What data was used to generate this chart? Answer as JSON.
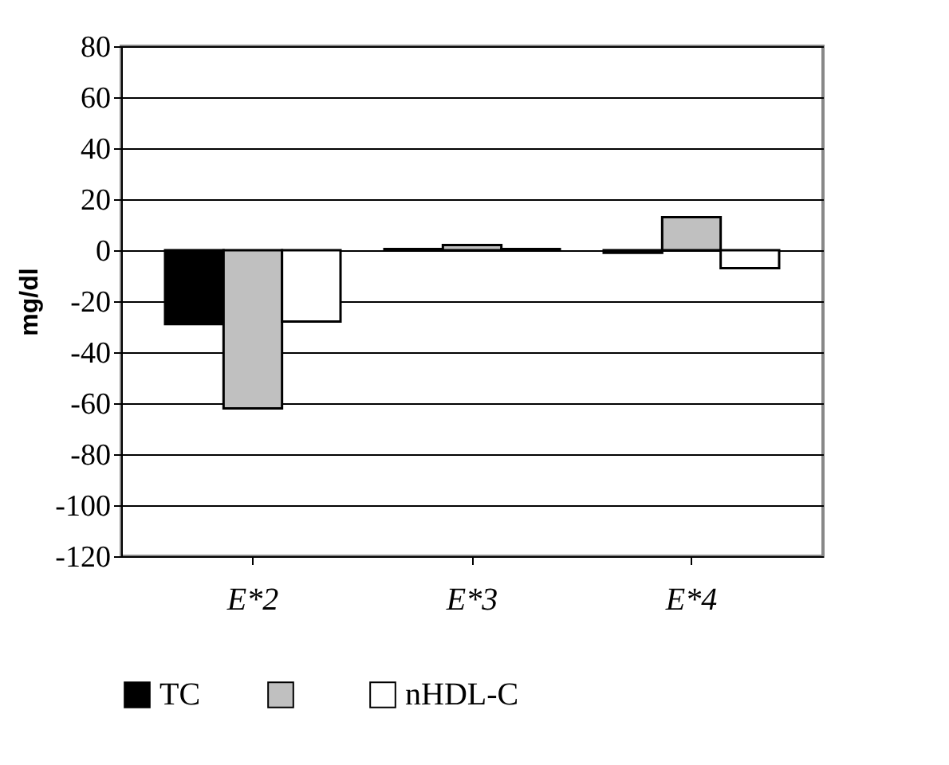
{
  "chart_data": {
    "type": "bar",
    "ylabel": "mg/dl",
    "categories": [
      "E*2",
      "E*3",
      "E*4"
    ],
    "series": [
      {
        "name": "TC",
        "color": "#000000",
        "values": [
          -29,
          0.5,
          -1
        ]
      },
      {
        "color": "#c0c0c0",
        "values": [
          -62,
          2,
          13
        ]
      },
      {
        "name": "nHDL-C",
        "color": "#ffffff",
        "values": [
          -28,
          0.5,
          -7
        ]
      }
    ],
    "ylim": [
      -120,
      80
    ],
    "yticks": [
      -120,
      -100,
      -80,
      -60,
      -40,
      -20,
      0,
      20,
      40,
      60,
      80
    ],
    "grid": "y",
    "legend": "bottom"
  }
}
